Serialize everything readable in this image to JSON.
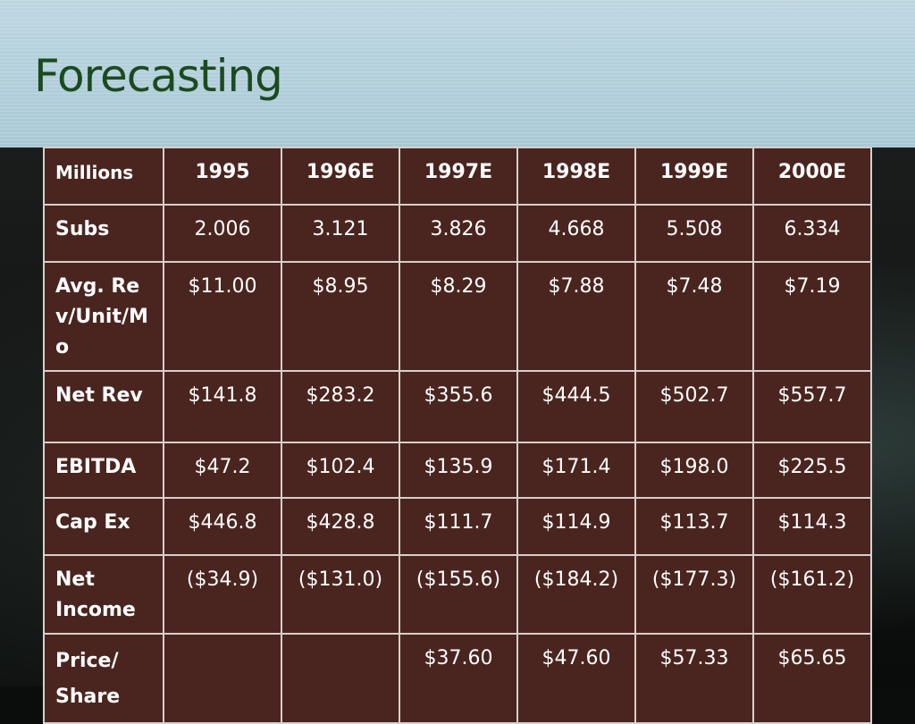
{
  "slide": {
    "title": "Forecasting"
  },
  "table": {
    "columns": [
      "Millions",
      "1995",
      "1996E",
      "1997E",
      "1998E",
      "1999E",
      "2000E"
    ],
    "rows": [
      {
        "label": "Subs",
        "values": [
          "2.006",
          "3.121",
          "3.826",
          "4.668",
          "5.508",
          "6.334"
        ]
      },
      {
        "label": "Avg. Rev/Unit/Mo",
        "values": [
          "$11.00",
          "$8.95",
          "$8.29",
          "$7.88",
          "$7.48",
          "$7.19"
        ]
      },
      {
        "label": "Net Rev",
        "values": [
          "$141.8",
          "$283.2",
          "$355.6",
          "$444.5",
          "$502.7",
          "$557.7"
        ]
      },
      {
        "label": "EBITDA",
        "values": [
          "$47.2",
          "$102.4",
          "$135.9",
          "$171.4",
          "$198.0",
          "$225.5"
        ]
      },
      {
        "label": "Cap Ex",
        "values": [
          "$446.8",
          "$428.8",
          "$111.7",
          "$114.9",
          "$113.7",
          "$114.3"
        ]
      },
      {
        "label": "Net Income",
        "values": [
          "($34.9)",
          "($131.0)",
          "($155.6)",
          "($184.2)",
          "($177.3)",
          "($161.2)"
        ]
      },
      {
        "label": "Price/ Share",
        "values": [
          "",
          "",
          "$37.60",
          "$47.60",
          "$57.33",
          "$65.65"
        ]
      }
    ]
  }
}
